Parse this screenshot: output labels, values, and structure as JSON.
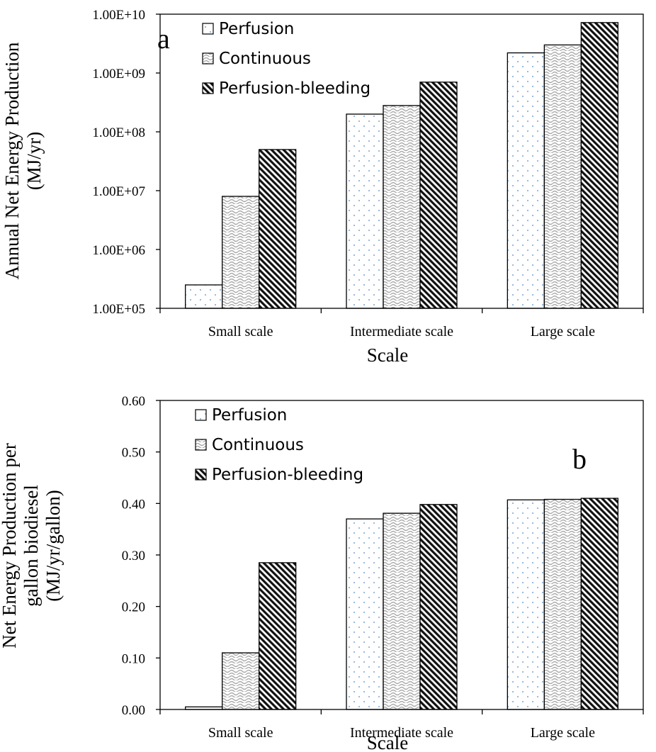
{
  "chart_data": [
    {
      "panel_label": "a",
      "type": "bar",
      "scale": "log",
      "categories": [
        "Small scale",
        "Intermediate scale",
        "Large scale"
      ],
      "xlabel": "Scale",
      "ylabel_lines": [
        "Annual Net Energy Production",
        "(MJ/yr)"
      ],
      "ylim": [
        100000,
        10000000000
      ],
      "yticks": [
        100000,
        1000000,
        10000000,
        100000000,
        1000000000,
        10000000000
      ],
      "ytick_labels": [
        "1.00E+05",
        "1.00E+06",
        "1.00E+07",
        "1.00E+08",
        "1.00E+09",
        "1.00E+10"
      ],
      "grid": false,
      "legend_position": "top-left",
      "series": [
        {
          "name": "Perfusion",
          "values": [
            250000,
            200000000,
            2200000000
          ]
        },
        {
          "name": "Continuous",
          "values": [
            8000000,
            280000000,
            3000000000
          ]
        },
        {
          "name": "Perfusion-bleeding",
          "values": [
            50000000,
            700000000,
            7200000000
          ]
        }
      ]
    },
    {
      "panel_label": "b",
      "type": "bar",
      "scale": "linear",
      "categories": [
        "Small scale",
        "Intermediate scale",
        "Large scale"
      ],
      "xlabel": "Scale",
      "ylabel_lines": [
        "Net Energy Production per",
        "gallon biodiesel",
        "(MJ/yr/gallon)"
      ],
      "ylim": [
        0,
        0.6
      ],
      "yticks": [
        0,
        0.1,
        0.2,
        0.3,
        0.4,
        0.5,
        0.6
      ],
      "ytick_labels": [
        "0.00",
        "0.10",
        "0.20",
        "0.30",
        "0.40",
        "0.50",
        "0.60"
      ],
      "grid": false,
      "legend_position": "top-left",
      "series": [
        {
          "name": "Perfusion",
          "values": [
            0.005,
            0.37,
            0.407
          ]
        },
        {
          "name": "Continuous",
          "values": [
            0.11,
            0.381,
            0.408
          ]
        },
        {
          "name": "Perfusion-bleeding",
          "values": [
            0.285,
            0.398,
            0.41
          ]
        }
      ]
    }
  ]
}
